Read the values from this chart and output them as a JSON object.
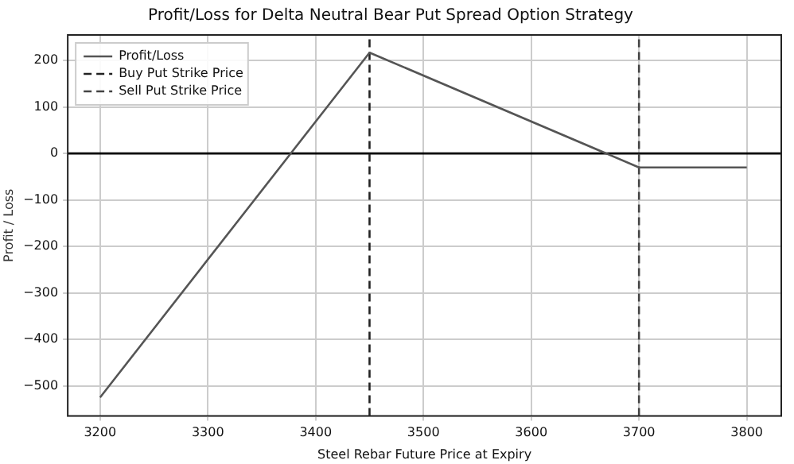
{
  "chart_data": {
    "type": "line",
    "title": "Profit/Loss for Delta Neutral Bear Put Spread Option Strategy",
    "xlabel": "Steel Rebar Future Price at Expiry",
    "ylabel": "Profit / Loss",
    "series": [
      {
        "name": "Profit/Loss",
        "color": "#555555",
        "x": [
          3200,
          3450,
          3700,
          3800
        ],
        "values": [
          -525,
          217,
          -30,
          -30
        ],
        "line_style": "solid"
      },
      {
        "name": "Buy Put Strike Price",
        "color": "#222222",
        "x": [
          3450,
          3450
        ],
        "values": [
          -565,
          255
        ],
        "line_style": "dashed"
      },
      {
        "name": "Sell Put Strike Price",
        "color": "#444444",
        "x": [
          3700,
          3700
        ],
        "values": [
          -565,
          255
        ],
        "line_style": "dashed"
      }
    ],
    "ref_lines": [
      {
        "axis": "y",
        "value": 0,
        "color": "#000000"
      }
    ],
    "xlim": [
      3170,
      3832
    ],
    "xticks": [
      3200,
      3300,
      3400,
      3500,
      3600,
      3700,
      3800
    ],
    "ylim": [
      -565,
      255
    ],
    "yticks": [
      -500,
      -400,
      -300,
      -200,
      -100,
      0,
      100,
      200
    ],
    "grid": true,
    "legend": "top left",
    "marker": "none"
  }
}
